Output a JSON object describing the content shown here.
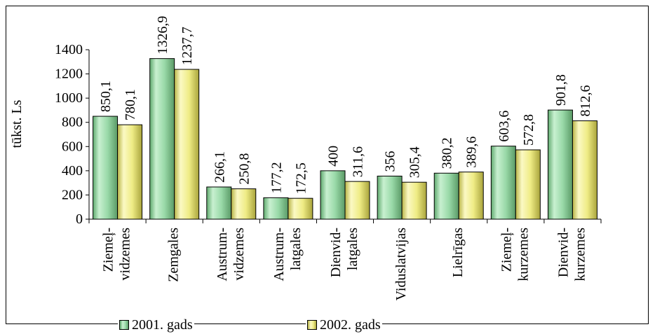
{
  "chart_data": {
    "type": "bar",
    "ylabel": "tūkst. Ls",
    "ylim": [
      0,
      1400
    ],
    "yticks": [
      0,
      200,
      400,
      600,
      800,
      1000,
      1200,
      1400
    ],
    "categories": [
      [
        "Ziemeļ-",
        "vidzemes"
      ],
      [
        "Zemgales"
      ],
      [
        "Austrum-",
        "vidzemes"
      ],
      [
        "Austrum-",
        "latgales"
      ],
      [
        "Dienvid-",
        "latgales"
      ],
      [
        "Viduslatvijas"
      ],
      [
        "Lielrīgas"
      ],
      [
        "Ziemeļ-",
        "kurzemes"
      ],
      [
        "Dienvid-",
        "kurzemes"
      ]
    ],
    "series": [
      {
        "name": "2001. gads",
        "color": "#99d9a8",
        "values": [
          850.1,
          1326.9,
          266.1,
          177.2,
          400,
          356,
          380.2,
          603.6,
          901.8
        ],
        "labels": [
          "850,1",
          "1326,9",
          "266,1",
          "177,2",
          "400",
          "356",
          "380,2",
          "603,6",
          "901,8"
        ]
      },
      {
        "name": "2002. gads",
        "color": "#f2f08e",
        "values": [
          780.1,
          1237.7,
          250.8,
          172.5,
          311.6,
          305.4,
          389.6,
          572.8,
          812.6
        ],
        "labels": [
          "780,1",
          "1237,7",
          "250,8",
          "172,5",
          "311,6",
          "305,4",
          "389,6",
          "572,8",
          "812,6"
        ]
      }
    ],
    "legend_position": "bottom",
    "grid": false
  }
}
